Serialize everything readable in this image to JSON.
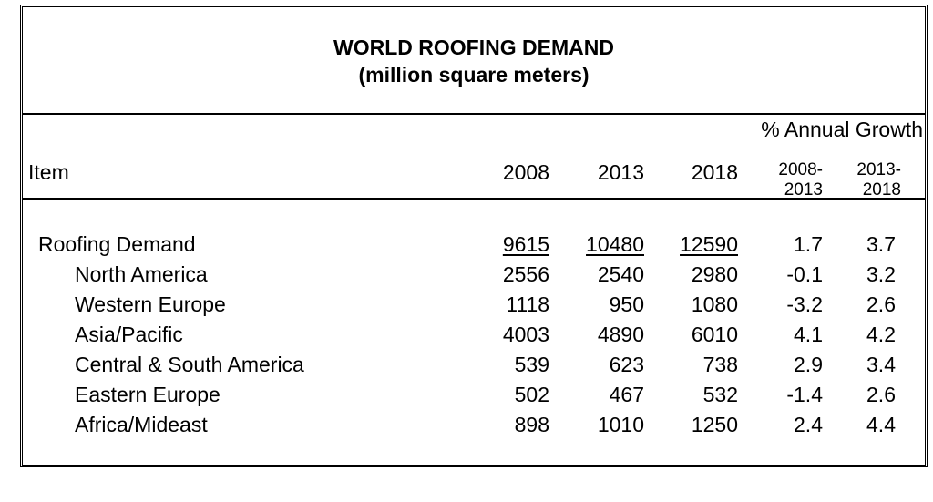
{
  "title": {
    "line1": "WORLD ROOFING DEMAND",
    "line2": "(million square meters)"
  },
  "header": {
    "growth_label": "% Annual Growth",
    "item_label": "Item",
    "years": [
      "2008",
      "2013",
      "2018"
    ],
    "ranges": [
      {
        "top": "2008-",
        "bottom": "2013"
      },
      {
        "top": "2013-",
        "bottom": "2018"
      }
    ]
  },
  "rows": [
    {
      "label": "Roofing Demand",
      "v2008": "9615",
      "v2013": "10480",
      "v2018": "12590",
      "g1": "1.7",
      "g2": "3.7"
    },
    {
      "label": "North America",
      "v2008": "2556",
      "v2013": "2540",
      "v2018": "2980",
      "g1": "-0.1",
      "g2": "3.2"
    },
    {
      "label": "Western Europe",
      "v2008": "1118",
      "v2013": "950",
      "v2018": "1080",
      "g1": "-3.2",
      "g2": "2.6"
    },
    {
      "label": "Asia/Pacific",
      "v2008": "4003",
      "v2013": "4890",
      "v2018": "6010",
      "g1": "4.1",
      "g2": "4.2"
    },
    {
      "label": "Central & South America",
      "v2008": "539",
      "v2013": "623",
      "v2018": "738",
      "g1": "2.9",
      "g2": "3.4"
    },
    {
      "label": "Eastern Europe",
      "v2008": "502",
      "v2013": "467",
      "v2018": "532",
      "g1": "-1.4",
      "g2": "2.6"
    },
    {
      "label": "Africa/Mideast",
      "v2008": "898",
      "v2013": "1010",
      "v2018": "1250",
      "g1": "2.4",
      "g2": "4.4"
    }
  ]
}
